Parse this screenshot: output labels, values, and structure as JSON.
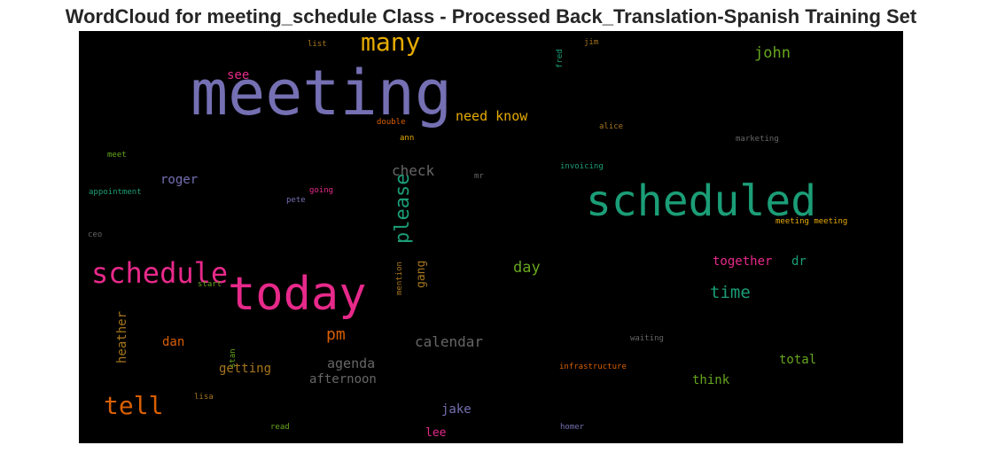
{
  "chart_data": {
    "type": "wordcloud",
    "title": "WordCloud for meeting_schedule Class - Processed Back_Translation-Spanish Training Set",
    "background": "#000000",
    "words": [
      {
        "text": "meeting",
        "weight": 1.0,
        "color": "#7570b3"
      },
      {
        "text": "scheduled",
        "weight": 0.62,
        "color": "#1b9e77"
      },
      {
        "text": "today",
        "weight": 0.66,
        "color": "#e7298a"
      },
      {
        "text": "schedule",
        "weight": 0.42,
        "color": "#e7298a"
      },
      {
        "text": "many",
        "weight": 0.34,
        "color": "#e6ab02"
      },
      {
        "text": "please",
        "weight": 0.3,
        "color": "#1b9e77",
        "vertical": true
      },
      {
        "text": "tell",
        "weight": 0.32,
        "color": "#d95f02"
      },
      {
        "text": "john",
        "weight": 0.22,
        "color": "#66a61e"
      },
      {
        "text": "time",
        "weight": 0.22,
        "color": "#1b9e77"
      },
      {
        "text": "pm",
        "weight": 0.22,
        "color": "#d95f02"
      },
      {
        "text": "need know",
        "weight": 0.18,
        "color": "#e6ab02"
      },
      {
        "text": "check",
        "weight": 0.18,
        "color": "#666666"
      },
      {
        "text": "calendar",
        "weight": 0.18,
        "color": "#666666"
      },
      {
        "text": "day",
        "weight": 0.18,
        "color": "#66a61e"
      },
      {
        "text": "agenda",
        "weight": 0.17,
        "color": "#666666"
      },
      {
        "text": "dan",
        "weight": 0.16,
        "color": "#d95f02"
      },
      {
        "text": "roger",
        "weight": 0.15,
        "color": "#7570b3"
      },
      {
        "text": "heather",
        "weight": 0.15,
        "color": "#a6761d",
        "vertical": true
      },
      {
        "text": "getting",
        "weight": 0.15,
        "color": "#a6761d"
      },
      {
        "text": "afternoon",
        "weight": 0.15,
        "color": "#666666"
      },
      {
        "text": "together",
        "weight": 0.15,
        "color": "#e7298a"
      },
      {
        "text": "dr",
        "weight": 0.15,
        "color": "#1b9e77"
      },
      {
        "text": "total",
        "weight": 0.15,
        "color": "#66a61e"
      },
      {
        "text": "think",
        "weight": 0.15,
        "color": "#66a61e"
      },
      {
        "text": "jake",
        "weight": 0.14,
        "color": "#7570b3"
      },
      {
        "text": "lee",
        "weight": 0.14,
        "color": "#e7298a"
      },
      {
        "text": "see",
        "weight": 0.14,
        "color": "#e7298a"
      },
      {
        "text": "gang",
        "weight": 0.14,
        "color": "#a6761d",
        "vertical": true
      },
      {
        "text": "list",
        "weight": 0.08,
        "color": "#a6761d"
      },
      {
        "text": "jim",
        "weight": 0.08,
        "color": "#a6761d"
      },
      {
        "text": "fred",
        "weight": 0.08,
        "color": "#1b9e77",
        "vertical": true
      },
      {
        "text": "alice",
        "weight": 0.08,
        "color": "#a6761d"
      },
      {
        "text": "double",
        "weight": 0.08,
        "color": "#d95f02"
      },
      {
        "text": "ann",
        "weight": 0.08,
        "color": "#e6ab02"
      },
      {
        "text": "marketing",
        "weight": 0.08,
        "color": "#666666"
      },
      {
        "text": "meet",
        "weight": 0.08,
        "color": "#66a61e"
      },
      {
        "text": "invoicing",
        "weight": 0.08,
        "color": "#1b9e77"
      },
      {
        "text": "mr",
        "weight": 0.08,
        "color": "#666666"
      },
      {
        "text": "appointment",
        "weight": 0.08,
        "color": "#1b9e77"
      },
      {
        "text": "going",
        "weight": 0.08,
        "color": "#e7298a"
      },
      {
        "text": "pete",
        "weight": 0.08,
        "color": "#7570b3"
      },
      {
        "text": "meeting meeting",
        "weight": 0.08,
        "color": "#e6ab02"
      },
      {
        "text": "ceo",
        "weight": 0.08,
        "color": "#666666"
      },
      {
        "text": "start",
        "weight": 0.08,
        "color": "#66a61e"
      },
      {
        "text": "mention",
        "weight": 0.08,
        "color": "#a6761d",
        "vertical": true
      },
      {
        "text": "waiting",
        "weight": 0.08,
        "color": "#666666"
      },
      {
        "text": "infrastructure",
        "weight": 0.08,
        "color": "#d95f02"
      },
      {
        "text": "lisa",
        "weight": 0.08,
        "color": "#a6761d"
      },
      {
        "text": "stan",
        "weight": 0.08,
        "color": "#66a61e",
        "vertical": true
      },
      {
        "text": "read",
        "weight": 0.08,
        "color": "#66a61e"
      },
      {
        "text": "homer",
        "weight": 0.08,
        "color": "#7570b3"
      }
    ]
  }
}
